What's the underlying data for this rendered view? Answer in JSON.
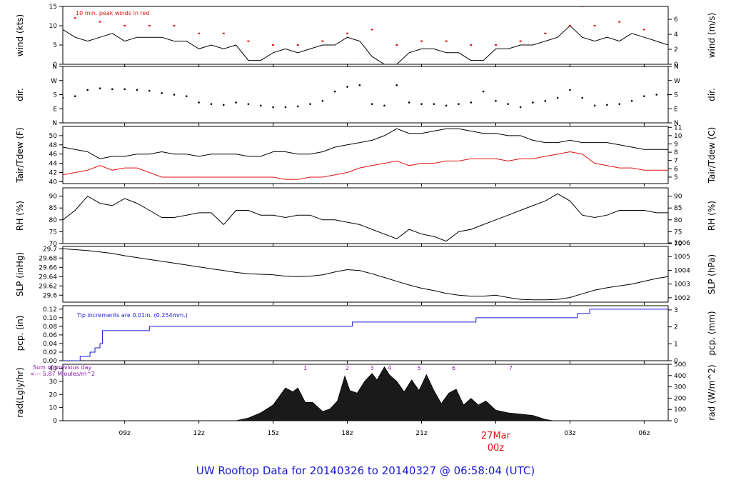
{
  "title": "UW Rooftop Data for 20140326  to  20140327 @ 06:58:04  (UTC)",
  "colors": {
    "trace": "#000000",
    "dewpoint": "#e01010",
    "peak": "#e01010",
    "precip": "#1a1ad6",
    "title": "#1a1ad6",
    "note": "#8a1ab0",
    "date_marker": "#e01010"
  },
  "x_axis": {
    "start_hour_utc": 6.5,
    "end_hour_utc": 30.97,
    "ticks": [
      {
        "h": 9,
        "label": "09z"
      },
      {
        "h": 12,
        "label": "12z"
      },
      {
        "h": 15,
        "label": "15z"
      },
      {
        "h": 18,
        "label": "18z"
      },
      {
        "h": 21,
        "label": "21z"
      },
      {
        "h": 24,
        "label": "00z"
      },
      {
        "h": 27,
        "label": "03z"
      },
      {
        "h": 30,
        "label": "06z"
      }
    ],
    "date_marker": {
      "h": 24,
      "label": "27Mar",
      "sublabel": "00z"
    }
  },
  "chart_data": [
    {
      "type": "line",
      "id": "wind",
      "ylabel": "wind (kts)",
      "ylabel_right": "wind (m/s)",
      "ylim": [
        0,
        15
      ],
      "yticks": [
        0,
        5,
        10,
        15
      ],
      "right_ylim": [
        0,
        7.72
      ],
      "right_yticks": [
        0,
        2,
        4,
        6
      ],
      "annotation": "10 min. peak winds in red",
      "series": [
        {
          "kind": "line",
          "color": "trace",
          "x": [
            6.5,
            7,
            7.5,
            8,
            8.5,
            9,
            9.5,
            10,
            10.5,
            11,
            11.5,
            12,
            12.5,
            13,
            13.5,
            14,
            14.5,
            15,
            15.5,
            16,
            16.5,
            17,
            17.5,
            18,
            18.5,
            19,
            19.5,
            20,
            20.5,
            21,
            21.5,
            22,
            22.5,
            23,
            23.5,
            24,
            24.5,
            25,
            25.5,
            26,
            26.5,
            27,
            27.5,
            28,
            28.5,
            29,
            29.5,
            30,
            30.5,
            30.97
          ],
          "y": [
            9,
            7,
            6,
            7,
            8,
            6,
            7,
            7,
            7,
            6,
            6,
            4,
            5,
            4,
            5,
            1,
            1,
            3,
            4,
            3,
            4,
            5,
            5,
            7,
            6,
            2,
            0,
            0,
            3,
            4,
            4,
            3,
            3,
            1,
            1,
            4,
            4,
            5,
            5,
            6,
            7,
            10,
            7,
            6,
            7,
            6,
            8,
            7,
            6,
            5
          ]
        },
        {
          "kind": "peaks",
          "color": "peak",
          "x": [
            7,
            8,
            9,
            10,
            11,
            12,
            13,
            14,
            15,
            16,
            17,
            18,
            19,
            20,
            21,
            22,
            23,
            24,
            25,
            26,
            27,
            27.5,
            28,
            29,
            30
          ],
          "y": [
            12,
            11,
            10,
            10,
            10,
            8,
            8,
            6,
            5,
            5,
            6,
            8,
            9,
            5,
            6,
            6,
            5,
            5,
            6,
            8,
            10,
            15,
            10,
            11,
            9
          ]
        }
      ]
    },
    {
      "type": "scatter",
      "id": "direction",
      "ylabel": "dir.",
      "ylabel_right": "dir.",
      "ylim": [
        0,
        360
      ],
      "ytick_values": [
        0,
        90,
        180,
        270,
        360
      ],
      "ytick_labels": [
        "N",
        "E",
        "S",
        "W",
        "N"
      ],
      "series": [
        {
          "kind": "points",
          "color": "trace",
          "x": [
            6.5,
            7,
            7.5,
            8,
            8.5,
            9,
            9.5,
            10,
            10.5,
            11,
            11.5,
            12,
            12.5,
            13,
            13.5,
            14,
            14.5,
            15,
            15.5,
            16,
            16.5,
            17,
            17.5,
            18,
            18.5,
            19,
            19.5,
            20,
            20.5,
            21,
            21.5,
            22,
            22.5,
            23,
            23.5,
            24,
            24.5,
            25,
            25.5,
            26,
            26.5,
            27,
            27.5,
            28,
            28.5,
            29,
            29.5,
            30,
            30.5,
            30.97
          ],
          "y": [
            160,
            170,
            210,
            220,
            215,
            215,
            210,
            205,
            190,
            180,
            170,
            130,
            120,
            115,
            130,
            120,
            110,
            100,
            100,
            105,
            120,
            140,
            200,
            230,
            240,
            120,
            110,
            240,
            130,
            120,
            120,
            110,
            120,
            130,
            200,
            140,
            120,
            100,
            130,
            140,
            160,
            210,
            160,
            110,
            115,
            120,
            140,
            170,
            180,
            180
          ]
        }
      ]
    },
    {
      "type": "line",
      "id": "temperature",
      "ylabel": "Tair/Tdew (F)",
      "ylabel_right": "Tair/Tdew (C)",
      "ylim": [
        39.6,
        52
      ],
      "yticks": [
        40,
        42,
        44,
        46,
        48,
        50
      ],
      "right_ylim": [
        4.22,
        11.11
      ],
      "right_yticks": [
        5,
        6,
        7,
        8,
        9,
        10,
        11
      ],
      "series": [
        {
          "name": "Tair",
          "color": "trace",
          "x": [
            6.5,
            7,
            7.5,
            8,
            8.5,
            9,
            9.5,
            10,
            10.5,
            11,
            11.5,
            12,
            12.5,
            13,
            13.5,
            14,
            14.5,
            15,
            15.5,
            16,
            16.5,
            17,
            17.5,
            18,
            18.5,
            19,
            19.5,
            20,
            20.5,
            21,
            21.5,
            22,
            22.5,
            23,
            23.5,
            24,
            24.5,
            25,
            25.5,
            26,
            26.5,
            27,
            27.5,
            28,
            28.5,
            29,
            29.5,
            30,
            30.5,
            30.97
          ],
          "y": [
            47.5,
            47,
            46.5,
            45,
            45.5,
            45.5,
            46,
            46,
            46.5,
            46,
            46,
            45.5,
            46,
            46,
            46,
            45.5,
            45.5,
            46.5,
            46.5,
            46,
            46,
            46.5,
            47.5,
            48,
            48.5,
            49,
            50,
            51.5,
            50.5,
            50.5,
            51,
            51.5,
            51.5,
            51,
            50.5,
            50.5,
            50,
            50,
            49,
            48.5,
            48.5,
            49,
            48.5,
            48.5,
            48.5,
            48,
            47.5,
            47,
            47,
            47
          ]
        },
        {
          "name": "Tdew",
          "color": "dewpoint",
          "x": [
            6.5,
            7,
            7.5,
            8,
            8.5,
            9,
            9.5,
            10,
            10.5,
            11,
            11.5,
            12,
            12.5,
            13,
            13.5,
            14,
            14.5,
            15,
            15.5,
            16,
            16.5,
            17,
            17.5,
            18,
            18.5,
            19,
            19.5,
            20,
            20.5,
            21,
            21.5,
            22,
            22.5,
            23,
            23.5,
            24,
            24.5,
            25,
            25.5,
            26,
            26.5,
            27,
            27.5,
            28,
            28.5,
            29,
            29.5,
            30,
            30.5,
            30.97
          ],
          "y": [
            41.5,
            42,
            42.5,
            43.5,
            42.5,
            43,
            43,
            42,
            41,
            41,
            41,
            41,
            41,
            41,
            41,
            41,
            41,
            41,
            40.5,
            40.5,
            41,
            41,
            41.5,
            42,
            43,
            43.5,
            44,
            44.5,
            43.5,
            44,
            44,
            44.5,
            44.5,
            45,
            45,
            45,
            44.5,
            45,
            45,
            45.5,
            46,
            46.5,
            46,
            44,
            43.5,
            43,
            43,
            42.5,
            42.5,
            42.5
          ]
        }
      ]
    },
    {
      "type": "line",
      "id": "relative-humidity",
      "ylabel": "RH (%)",
      "ylabel_right": "RH (%)",
      "ylim": [
        70,
        93.5
      ],
      "yticks": [
        70,
        75,
        80,
        85,
        90
      ],
      "right_ylim": [
        70,
        93.5
      ],
      "right_yticks": [
        70,
        75,
        80,
        85,
        90
      ],
      "series": [
        {
          "color": "trace",
          "x": [
            6.5,
            7,
            7.5,
            8,
            8.5,
            9,
            9.5,
            10,
            10.5,
            11,
            11.5,
            12,
            12.5,
            13,
            13.5,
            14,
            14.5,
            15,
            15.5,
            16,
            16.5,
            17,
            17.5,
            18,
            18.5,
            19,
            19.5,
            20,
            20.5,
            21,
            21.5,
            22,
            22.5,
            23,
            23.5,
            24,
            24.5,
            25,
            25.5,
            26,
            26.5,
            27,
            27.5,
            28,
            28.5,
            29,
            29.5,
            30,
            30.5,
            30.97
          ],
          "y": [
            80,
            84,
            90,
            87,
            86,
            89,
            87,
            84,
            81,
            81,
            82,
            83,
            83,
            78,
            84,
            84,
            82,
            82,
            81,
            82,
            82,
            80,
            80,
            79,
            78,
            76,
            74,
            72,
            76,
            74,
            73,
            71,
            75,
            76,
            78,
            80,
            82,
            84,
            86,
            88,
            91,
            88,
            82,
            81,
            82,
            84,
            84,
            84,
            83,
            83
          ]
        }
      ]
    },
    {
      "type": "line",
      "id": "sea-level-pressure",
      "ylabel": "SLP (inHg)",
      "ylabel_right": "SLP (hPa)",
      "ylim": [
        29.585,
        29.705
      ],
      "yticks": [
        29.6,
        29.62,
        29.64,
        29.66,
        29.68,
        29.7
      ],
      "right_ylim": [
        1001.68,
        1005.74
      ],
      "right_yticks": [
        1002,
        1003,
        1004,
        1005,
        1006
      ],
      "series": [
        {
          "color": "trace",
          "x": [
            6.5,
            7,
            7.5,
            8,
            8.5,
            9,
            9.5,
            10,
            10.5,
            11,
            11.5,
            12,
            12.5,
            13,
            13.5,
            14,
            14.5,
            15,
            15.5,
            16,
            16.5,
            17,
            17.5,
            18,
            18.5,
            19,
            19.5,
            20,
            20.5,
            21,
            21.5,
            22,
            22.5,
            23,
            23.5,
            24,
            24.5,
            25,
            25.5,
            26,
            26.5,
            27,
            27.5,
            28,
            28.5,
            29,
            29.5,
            30,
            30.5,
            30.97
          ],
          "y": [
            29.7,
            29.698,
            29.696,
            29.693,
            29.69,
            29.685,
            29.681,
            29.677,
            29.673,
            29.669,
            29.665,
            29.661,
            29.657,
            29.653,
            29.649,
            29.646,
            29.645,
            29.644,
            29.641,
            29.64,
            29.641,
            29.644,
            29.65,
            29.655,
            29.653,
            29.646,
            29.638,
            29.63,
            29.622,
            29.615,
            29.61,
            29.604,
            29.6,
            29.598,
            29.598,
            29.6,
            29.595,
            29.591,
            29.59,
            29.59,
            29.591,
            29.595,
            29.603,
            29.611,
            29.616,
            29.62,
            29.624,
            29.63,
            29.636,
            29.64
          ]
        }
      ]
    },
    {
      "type": "line",
      "id": "precipitation",
      "ylabel": "pcp. (in)",
      "ylabel_right": "pcp. (mm)",
      "ylim": [
        0,
        0.128
      ],
      "yticks": [
        0.0,
        0.02,
        0.04,
        0.06,
        0.08,
        0.1,
        0.12
      ],
      "yticklabels": [
        "0.00",
        "0.02",
        "0.04",
        "0.06",
        "0.08",
        "0.10",
        "0.12"
      ],
      "right_ylim": [
        0,
        3.25
      ],
      "right_yticks": [
        0,
        1,
        2,
        3
      ],
      "annotation": "Tip increments are 0.01in. (0.254mm.)",
      "series": [
        {
          "kind": "step",
          "color": "precip",
          "x": [
            6.5,
            6.9,
            7.2,
            7.6,
            7.8,
            8.0,
            8.1,
            10.0,
            18.2,
            23.2,
            27.3,
            27.8,
            30.97
          ],
          "y": [
            0,
            0,
            0.01,
            0.02,
            0.03,
            0.04,
            0.07,
            0.08,
            0.09,
            0.1,
            0.11,
            0.12,
            0.12
          ]
        }
      ]
    },
    {
      "type": "area",
      "id": "solar-radiation",
      "ylabel": "rad(Lgly/hr)",
      "ylabel_right": "rad (W/m^2)",
      "ylim": [
        0,
        43
      ],
      "yticks": [
        0,
        10,
        20,
        30,
        40
      ],
      "right_ylim": [
        0,
        500
      ],
      "right_yticks": [
        0,
        100,
        200,
        300,
        400,
        500
      ],
      "annotation": [
        "Sum of previous day",
        "<--- 5.87 MJoules/m^2"
      ],
      "markers": [
        {
          "h": 16.3,
          "label": "1"
        },
        {
          "h": 18.0,
          "label": "2"
        },
        {
          "h": 19.0,
          "label": "3"
        },
        {
          "h": 19.7,
          "label": "4"
        },
        {
          "h": 20.9,
          "label": "5"
        },
        {
          "h": 22.3,
          "label": "6"
        },
        {
          "h": 24.6,
          "label": "7"
        }
      ],
      "series": [
        {
          "color": "trace",
          "x": [
            13.5,
            14,
            14.5,
            15,
            15.5,
            15.8,
            16,
            16.3,
            16.6,
            17,
            17.3,
            17.6,
            17.9,
            18.1,
            18.4,
            18.7,
            19,
            19.2,
            19.5,
            19.7,
            20,
            20.3,
            20.6,
            20.9,
            21.2,
            21.5,
            21.8,
            22.1,
            22.4,
            22.7,
            23,
            23.3,
            23.6,
            24,
            24.5,
            25,
            25.5,
            26,
            26.3
          ],
          "y": [
            0,
            2,
            6,
            12,
            25,
            22,
            25,
            14,
            14,
            7,
            9,
            15,
            34,
            23,
            21,
            30,
            36,
            31,
            41,
            35,
            30,
            22,
            31,
            23,
            35,
            23,
            13,
            21,
            24,
            12,
            17,
            12,
            15,
            8,
            6,
            5,
            4,
            1,
            0
          ]
        }
      ]
    }
  ]
}
